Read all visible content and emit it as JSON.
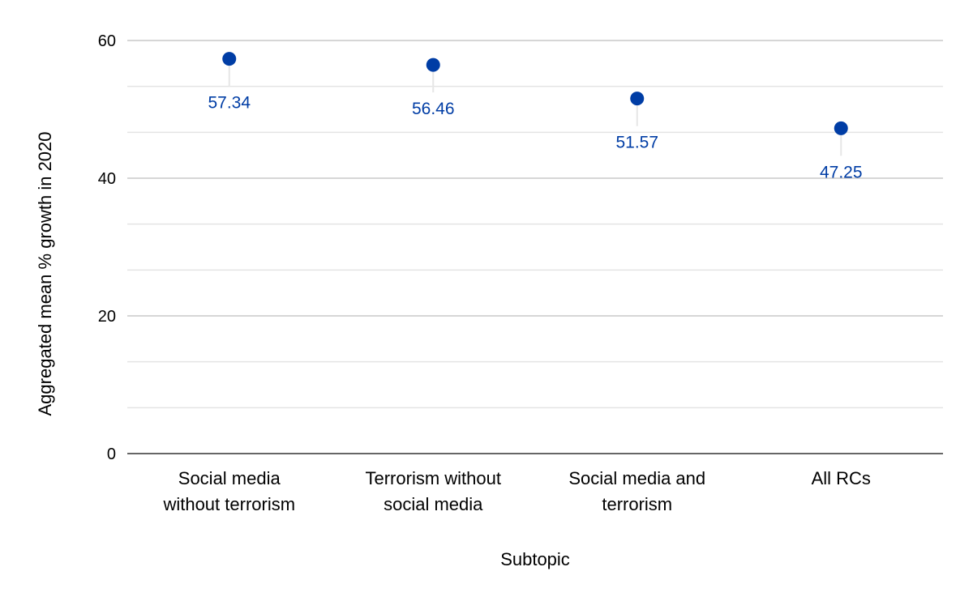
{
  "chart_data": {
    "type": "scatter",
    "title": "",
    "xlabel": "Subtopic",
    "ylabel": "Aggregated mean % growth in 2020",
    "categories": [
      [
        "Social media",
        "without terrorism"
      ],
      [
        "Terrorism without",
        "social media"
      ],
      [
        "Social media and",
        "terrorism"
      ],
      [
        "All RCs"
      ]
    ],
    "values": [
      57.34,
      56.46,
      51.57,
      47.25
    ],
    "labels": [
      "57.34",
      "56.46",
      "51.57",
      "47.25"
    ],
    "ylim": [
      0,
      60
    ],
    "yticks": [
      0,
      20,
      40,
      60
    ],
    "minor_step": 6.6667,
    "grid": true,
    "legend": "none",
    "colors": {
      "point": "#003DA5",
      "label": "#003DA5",
      "grid_major": "#c8c8c8",
      "grid_minor": "#e4e4e4",
      "stem": "#e6e6e6"
    }
  }
}
